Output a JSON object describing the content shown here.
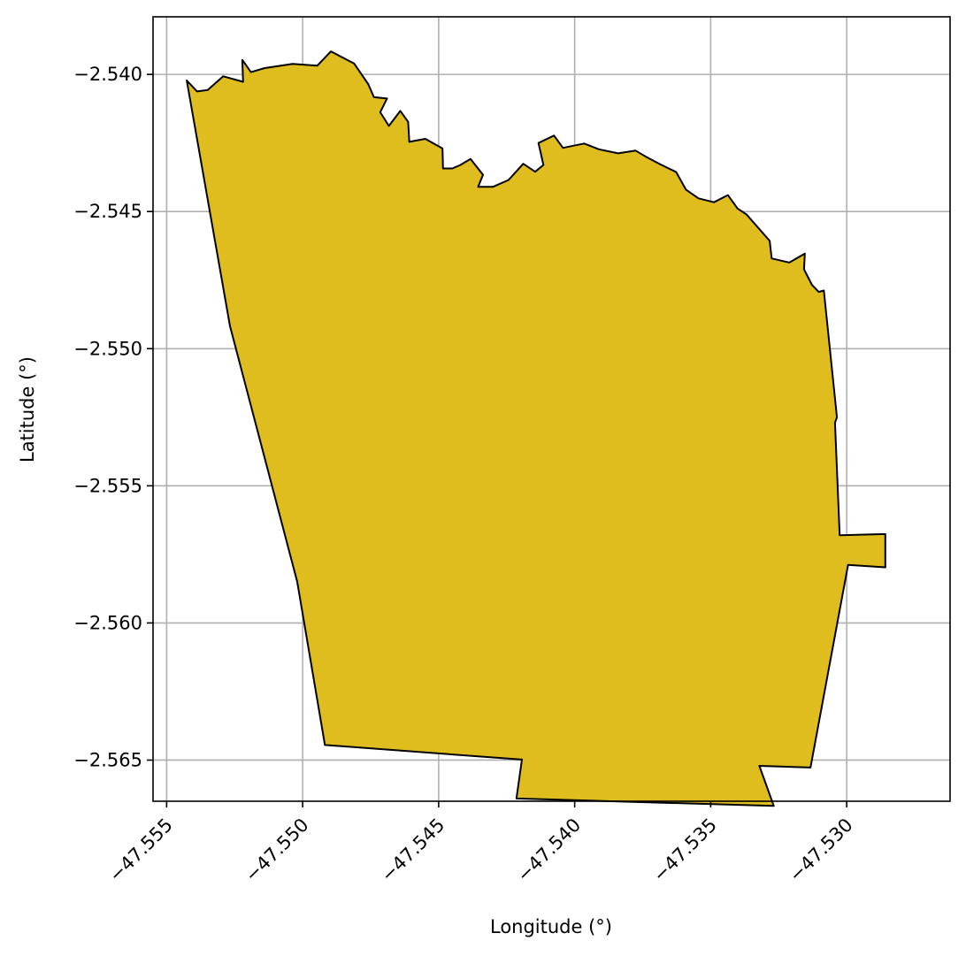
{
  "chart_data": {
    "type": "map",
    "title": "",
    "xlabel": "Longitude (°)",
    "ylabel": "Latitude (°)",
    "xlim": [
      -47.5555,
      -47.5262
    ],
    "ylim": [
      -2.5665,
      -2.5379
    ],
    "xticks": [
      -47.555,
      -47.55,
      -47.545,
      -47.54,
      -47.535,
      -47.53
    ],
    "xtick_labels": [
      "−47.555",
      "−47.550",
      "−47.545",
      "−47.540",
      "−47.535",
      "−47.530"
    ],
    "yticks": [
      -2.54,
      -2.545,
      -2.55,
      -2.555,
      -2.56,
      -2.565
    ],
    "ytick_labels": [
      "−2.540",
      "−2.545",
      "−2.550",
      "−2.555",
      "−2.560",
      "−2.565"
    ],
    "grid": true,
    "fill_color": "#DFBD1F",
    "edge_color": "#000000",
    "polygon": [
      [
        -47.55426,
        -2.54022
      ],
      [
        -47.55388,
        -2.54062
      ],
      [
        -47.55349,
        -2.54057
      ],
      [
        -47.55292,
        -2.54007
      ],
      [
        -47.55219,
        -2.54027
      ],
      [
        -47.55222,
        -2.53947
      ],
      [
        -47.5519,
        -2.53992
      ],
      [
        -47.5514,
        -2.53977
      ],
      [
        -47.55037,
        -2.53962
      ],
      [
        -47.54946,
        -2.53968
      ],
      [
        -47.54896,
        -2.53916
      ],
      [
        -47.54811,
        -2.5396
      ],
      [
        -47.54759,
        -2.54035
      ],
      [
        -47.54738,
        -2.54083
      ],
      [
        -47.5469,
        -2.54088
      ],
      [
        -47.54715,
        -2.54138
      ],
      [
        -47.54683,
        -2.54188
      ],
      [
        -47.54641,
        -2.54133
      ],
      [
        -47.54612,
        -2.54173
      ],
      [
        -47.54608,
        -2.54246
      ],
      [
        -47.54549,
        -2.54235
      ],
      [
        -47.54486,
        -2.5427
      ],
      [
        -47.54484,
        -2.54343
      ],
      [
        -47.5445,
        -2.54343
      ],
      [
        -47.5442,
        -2.5433
      ],
      [
        -47.54383,
        -2.54308
      ],
      [
        -47.54337,
        -2.54366
      ],
      [
        -47.54355,
        -2.5441
      ],
      [
        -47.54301,
        -2.5441
      ],
      [
        -47.54243,
        -2.54385
      ],
      [
        -47.54189,
        -2.54326
      ],
      [
        -47.54145,
        -2.54355
      ],
      [
        -47.54115,
        -2.5433
      ],
      [
        -47.54133,
        -2.5425
      ],
      [
        -47.54076,
        -2.54223
      ],
      [
        -47.54043,
        -2.54268
      ],
      [
        -47.53965,
        -2.54252
      ],
      [
        -47.53911,
        -2.54273
      ],
      [
        -47.5384,
        -2.54288
      ],
      [
        -47.53776,
        -2.54278
      ],
      [
        -47.53738,
        -2.543
      ],
      [
        -47.53685,
        -2.54328
      ],
      [
        -47.53627,
        -2.54356
      ],
      [
        -47.53591,
        -2.5442
      ],
      [
        -47.53545,
        -2.54452
      ],
      [
        -47.53488,
        -2.54466
      ],
      [
        -47.53437,
        -2.5444
      ],
      [
        -47.53401,
        -2.54489
      ],
      [
        -47.53368,
        -2.54511
      ],
      [
        -47.53283,
        -2.54607
      ],
      [
        -47.53276,
        -2.54671
      ],
      [
        -47.53211,
        -2.54686
      ],
      [
        -47.53154,
        -2.54653
      ],
      [
        -47.53157,
        -2.54711
      ],
      [
        -47.53128,
        -2.54767
      ],
      [
        -47.53103,
        -2.54793
      ],
      [
        -47.53084,
        -2.54788
      ],
      [
        -47.53036,
        -2.5525
      ],
      [
        -47.53043,
        -2.5527
      ],
      [
        -47.53026,
        -2.5568
      ],
      [
        -47.52858,
        -2.55676
      ],
      [
        -47.52858,
        -2.55797
      ],
      [
        -47.52995,
        -2.55788
      ],
      [
        -47.53133,
        -2.56527
      ],
      [
        -47.53321,
        -2.56521
      ],
      [
        -47.53268,
        -2.56667
      ],
      [
        -47.54214,
        -2.5664
      ],
      [
        -47.54194,
        -2.56498
      ],
      [
        -47.54918,
        -2.56445
      ],
      [
        -47.5502,
        -2.5585
      ],
      [
        -47.55267,
        -2.54918
      ]
    ]
  }
}
